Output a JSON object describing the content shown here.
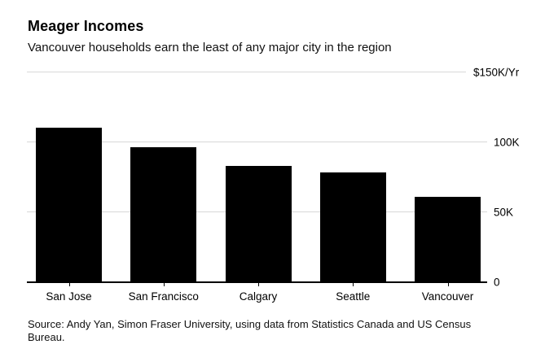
{
  "header": {
    "title": "Meager Incomes",
    "subtitle": "Vancouver households earn the least of any major city in the region"
  },
  "chart_data": {
    "type": "bar",
    "title": "Meager Incomes",
    "subtitle": "Vancouver households earn the least of any major city in the region",
    "categories": [
      "San Jose",
      "San Francisco",
      "Calgary",
      "Seattle",
      "Vancouver"
    ],
    "values": [
      110,
      96,
      83,
      78,
      61
    ],
    "value_unit": "$K/Yr",
    "xlabel": "",
    "ylabel": "",
    "ylim": [
      0,
      150
    ],
    "grid": true,
    "legend": false,
    "y_ticks": [
      {
        "value": 150,
        "label": "$150K/Yr"
      },
      {
        "value": 100,
        "label": "100K"
      },
      {
        "value": 50,
        "label": "50K"
      },
      {
        "value": 0,
        "label": "0"
      }
    ],
    "bar_color": "#000000",
    "gridline_color": "#d8d8d8",
    "axis_color": "#000000",
    "background_color": "#ffffff"
  },
  "source": {
    "lines": [
      "Source: Andy Yan, Simon Fraser University, using data from Statistics Canada and US Census",
      "Bureau."
    ]
  }
}
